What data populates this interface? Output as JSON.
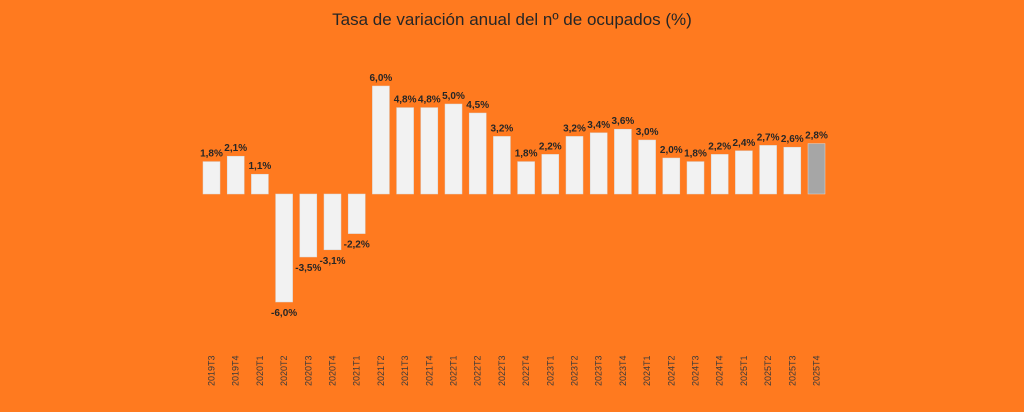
{
  "chart_data": {
    "type": "bar",
    "title": "Tasa de variación anual del nº de ocupados (%)",
    "xlabel": "",
    "ylabel": "",
    "categories": [
      "2019T3",
      "2019T4",
      "2020T1",
      "2020T2",
      "2020T3",
      "2020T4",
      "2021T1",
      "2021T2",
      "2021T3",
      "2021T4",
      "2022T1",
      "2022T2",
      "2022T3",
      "2022T4",
      "2023T1",
      "2023T2",
      "2023T3",
      "2023T4",
      "2024T1",
      "2024T2",
      "2024T3",
      "2024T4",
      "2025T1",
      "2025T2",
      "2025T3",
      "2025T4"
    ],
    "values": [
      1.8,
      2.1,
      1.1,
      -6.0,
      -3.5,
      -3.1,
      -2.2,
      6.0,
      4.8,
      4.8,
      5.0,
      4.5,
      3.2,
      1.8,
      2.2,
      3.2,
      3.4,
      3.6,
      3.0,
      2.0,
      1.8,
      2.2,
      2.4,
      2.7,
      2.6,
      2.8
    ],
    "data_labels": [
      "1,8%",
      "2,1%",
      "1,1%",
      "-6,0%",
      "-3,5%",
      "-3,1%",
      "-2,2%",
      "6,0%",
      "4,8%",
      "4,8%",
      "5,0%",
      "4,5%",
      "3,2%",
      "1,8%",
      "2,2%",
      "3,2%",
      "3,4%",
      "3,6%",
      "3,0%",
      "2,0%",
      "1,8%",
      "2,2%",
      "2,4%",
      "2,7%",
      "2,6%",
      "2,8%"
    ],
    "ylim": [
      -6.5,
      6.5
    ],
    "grid": false,
    "legend": "none",
    "colors": {
      "background": "#FF7A1F",
      "bar": "#F2F2F2",
      "highlight_bar": "#A6A6A6",
      "text": "#262626"
    },
    "highlight_index": 25
  }
}
